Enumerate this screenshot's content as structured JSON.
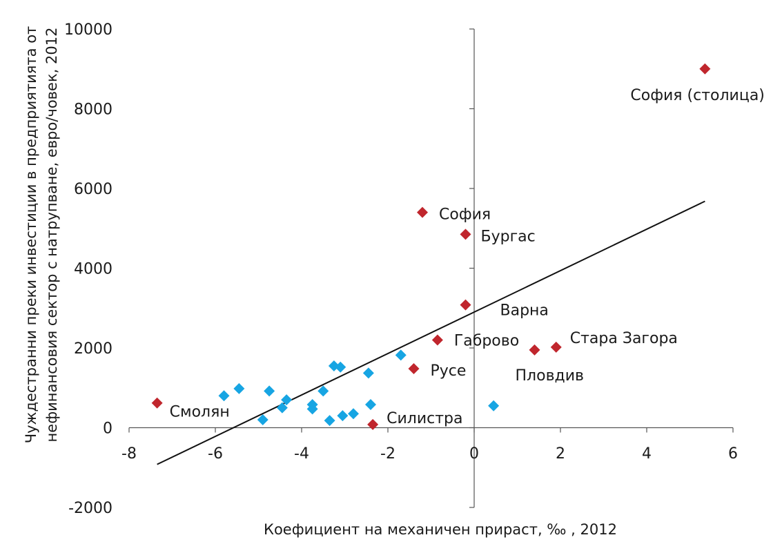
{
  "chart_data": {
    "type": "scatter",
    "title": "",
    "xlabel": "Коефициент на механичен прираст, ‰ , 2012",
    "ylabel_line1": "Чуждестранни преки инвестиции в предприятията от",
    "ylabel_line2": "нефинансовия сектор с натрупване, евро/човек, 2012",
    "xlim": [
      -8,
      6
    ],
    "ylim": [
      -2000,
      10000
    ],
    "x_ticks": [
      -8,
      -6,
      -4,
      -2,
      0,
      2,
      4,
      6
    ],
    "x_tick_labels": [
      "-8",
      "-6",
      "-4",
      "-2",
      "0",
      "2",
      "4",
      "6"
    ],
    "y_ticks": [
      -2000,
      0,
      2000,
      4000,
      6000,
      8000,
      10000
    ],
    "y_tick_labels": [
      "-2000",
      "0",
      "2000",
      "4000",
      "6000",
      "8000",
      "10000"
    ],
    "grid": false,
    "colors": {
      "highlight": "#c0262d",
      "other": "#17a5e3",
      "trend": "#111111",
      "axis": "#555555"
    },
    "labeled_points": [
      {
        "x": 5.35,
        "y": 9000,
        "label": "София (столица)"
      },
      {
        "x": -1.2,
        "y": 5400,
        "label": "София"
      },
      {
        "x": -0.2,
        "y": 4850,
        "label": "Бургас"
      },
      {
        "x": -0.2,
        "y": 3080,
        "label": "Варна"
      },
      {
        "x": -0.85,
        "y": 2200,
        "label": "Габрово"
      },
      {
        "x": 1.9,
        "y": 2020,
        "label": "Стара Загора"
      },
      {
        "x": 1.4,
        "y": 1950,
        "label": "Пловдив"
      },
      {
        "x": -1.4,
        "y": 1480,
        "label": "Русе"
      },
      {
        "x": -7.35,
        "y": 620,
        "label": "Смолян"
      },
      {
        "x": -2.35,
        "y": 80,
        "label": "Силистра"
      }
    ],
    "other_points": [
      {
        "x": -5.8,
        "y": 800
      },
      {
        "x": -5.45,
        "y": 980
      },
      {
        "x": -4.75,
        "y": 920
      },
      {
        "x": -4.35,
        "y": 700
      },
      {
        "x": -4.45,
        "y": 500
      },
      {
        "x": -4.9,
        "y": 200
      },
      {
        "x": -3.75,
        "y": 580
      },
      {
        "x": -3.75,
        "y": 470
      },
      {
        "x": -3.5,
        "y": 920
      },
      {
        "x": -3.35,
        "y": 180
      },
      {
        "x": -3.25,
        "y": 1550
      },
      {
        "x": -3.1,
        "y": 1520
      },
      {
        "x": -3.05,
        "y": 300
      },
      {
        "x": -2.8,
        "y": 350
      },
      {
        "x": -2.45,
        "y": 1370
      },
      {
        "x": -2.4,
        "y": 580
      },
      {
        "x": -1.7,
        "y": 1820
      },
      {
        "x": 0.45,
        "y": 550
      }
    ],
    "trendline": {
      "x": [
        -7.35,
        5.35
      ],
      "y": [
        -920,
        5680
      ]
    }
  }
}
